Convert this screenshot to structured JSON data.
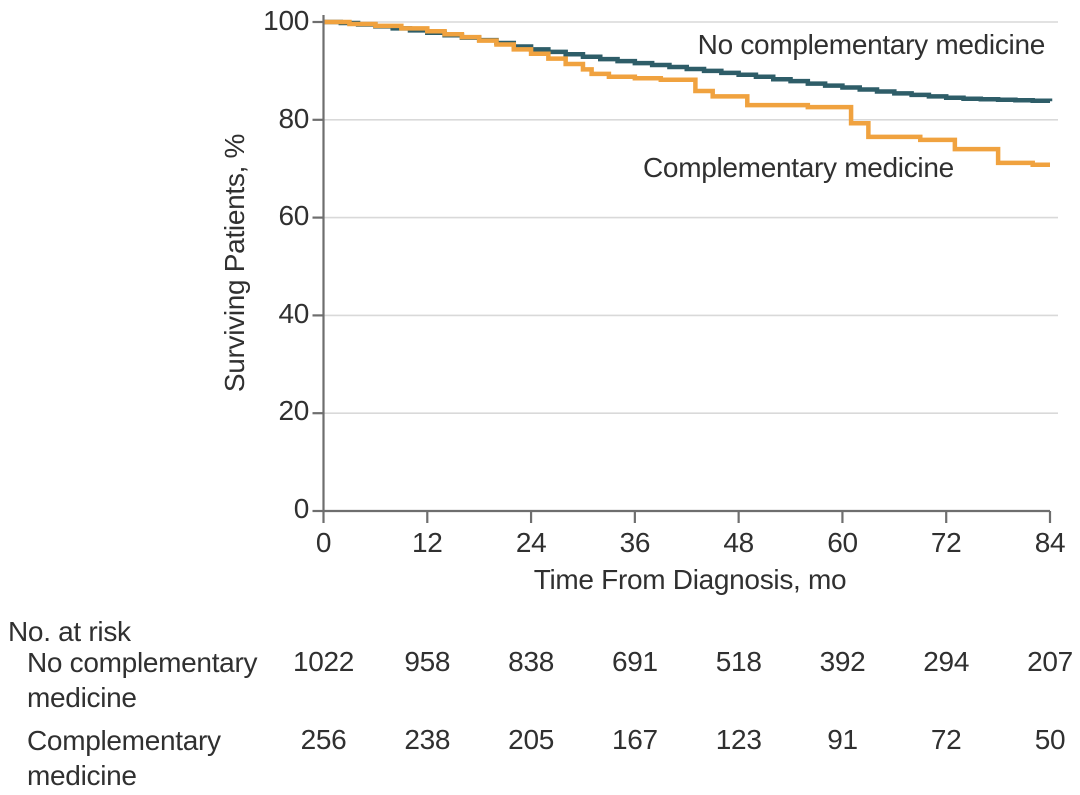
{
  "chart_data": {
    "type": "line",
    "subtype": "kaplan-meier-step-survival",
    "title": "",
    "xlabel": "Time From Diagnosis, mo",
    "ylabel": "Surviving Patients, %",
    "xlim": [
      0,
      84
    ],
    "ylim": [
      0,
      100
    ],
    "x_ticks": [
      0,
      12,
      24,
      36,
      48,
      60,
      72,
      84
    ],
    "y_ticks_top_to_bottom": [
      100,
      80,
      60,
      40,
      20,
      0
    ],
    "grid": "horizontal",
    "legend_position": "inline-labels",
    "colors": {
      "no_complementary": "#2e5d68",
      "complementary": "#f0a23f",
      "gridline": "#d9d9d9",
      "axis": "#6e6e6e",
      "text": "#303030"
    },
    "series": [
      {
        "name": "No complementary medicine",
        "color": "#2e5d68",
        "points": [
          [
            0,
            100
          ],
          [
            2,
            99.8
          ],
          [
            4,
            99.5
          ],
          [
            6,
            99.1
          ],
          [
            8,
            98.7
          ],
          [
            10,
            98.3
          ],
          [
            12,
            97.8
          ],
          [
            14,
            97.3
          ],
          [
            16,
            96.8
          ],
          [
            18,
            96.3
          ],
          [
            20,
            95.7
          ],
          [
            22,
            95.0
          ],
          [
            24,
            94.4
          ],
          [
            26,
            93.9
          ],
          [
            28,
            93.4
          ],
          [
            30,
            92.9
          ],
          [
            32,
            92.4
          ],
          [
            34,
            92.0
          ],
          [
            36,
            91.6
          ],
          [
            38,
            91.2
          ],
          [
            40,
            90.8
          ],
          [
            42,
            90.4
          ],
          [
            44,
            90.0
          ],
          [
            46,
            89.6
          ],
          [
            48,
            89.2
          ],
          [
            50,
            88.8
          ],
          [
            52,
            88.3
          ],
          [
            54,
            87.9
          ],
          [
            56,
            87.4
          ],
          [
            58,
            87.0
          ],
          [
            60,
            86.6
          ],
          [
            62,
            86.2
          ],
          [
            64,
            85.8
          ],
          [
            66,
            85.4
          ],
          [
            68,
            85.1
          ],
          [
            70,
            84.8
          ],
          [
            72,
            84.5
          ],
          [
            74,
            84.3
          ],
          [
            76,
            84.2
          ],
          [
            78,
            84.1
          ],
          [
            80,
            84.0
          ],
          [
            82,
            83.9
          ],
          [
            84,
            83.8
          ]
        ]
      },
      {
        "name": "Complementary medicine",
        "color": "#f0a23f",
        "points": [
          [
            0,
            100
          ],
          [
            3,
            99.6
          ],
          [
            6,
            99.2
          ],
          [
            9,
            98.7
          ],
          [
            12,
            98.1
          ],
          [
            14,
            97.5
          ],
          [
            16,
            96.9
          ],
          [
            18,
            96.2
          ],
          [
            20,
            95.4
          ],
          [
            22,
            94.4
          ],
          [
            24,
            93.5
          ],
          [
            26,
            92.5
          ],
          [
            28,
            91.4
          ],
          [
            30,
            90.3
          ],
          [
            31,
            89.4
          ],
          [
            33,
            88.8
          ],
          [
            36,
            88.5
          ],
          [
            39,
            88.2
          ],
          [
            43,
            85.9
          ],
          [
            45,
            84.8
          ],
          [
            49,
            83.0
          ],
          [
            56,
            82.6
          ],
          [
            61,
            79.3
          ],
          [
            63,
            76.5
          ],
          [
            69,
            75.9
          ],
          [
            73,
            74.0
          ],
          [
            78,
            71.2
          ],
          [
            82,
            70.8
          ],
          [
            84,
            70.8
          ]
        ]
      }
    ],
    "risk_table": {
      "header": "No. at risk",
      "times": [
        0,
        12,
        24,
        36,
        48,
        60,
        72,
        84
      ],
      "rows": [
        {
          "label": "No complementary medicine",
          "values": [
            "1022",
            "958",
            "838",
            "691",
            "518",
            "392",
            "294",
            "207"
          ]
        },
        {
          "label": "Complementary medicine",
          "values": [
            "256",
            "238",
            "205",
            "167",
            "123",
            "91",
            "72",
            "50"
          ]
        }
      ]
    }
  }
}
